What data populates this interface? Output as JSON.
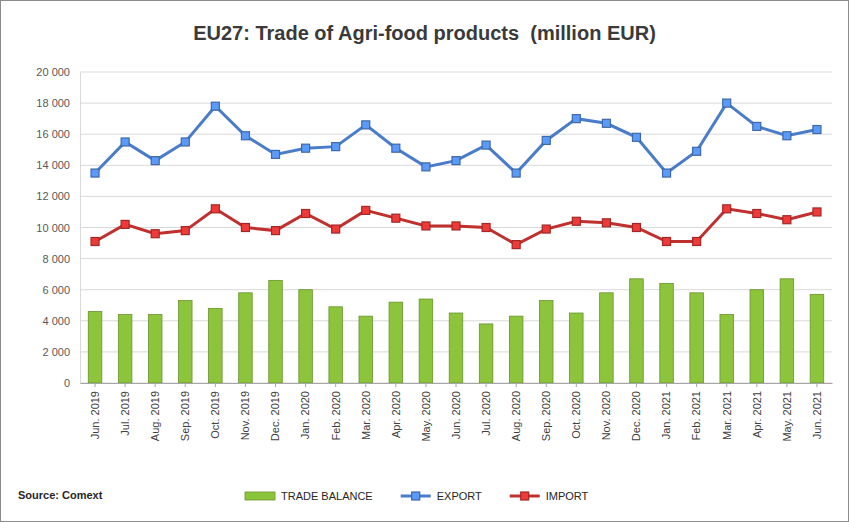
{
  "chart_data": {
    "type": "line",
    "title": "EU27: Trade of Agri-food products  (million EUR)",
    "source": "Source: Comext",
    "categories": [
      "Jun. 2019",
      "Jul. 2019",
      "Aug. 2019",
      "Sep. 2019",
      "Oct. 2019",
      "Nov. 2019",
      "Dec. 2019",
      "Jan. 2020",
      "Feb. 2020",
      "Mar. 2020",
      "Apr. 2020",
      "May. 2020",
      "Jun. 2020",
      "Jul. 2020",
      "Aug. 2020",
      "Sep. 2020",
      "Oct. 2020",
      "Nov. 2020",
      "Dec. 2020",
      "Jan. 2021",
      "Feb. 2021",
      "Mar. 2021",
      "Apr. 2021",
      "May. 2021",
      "Jun. 2021"
    ],
    "series": [
      {
        "name": "TRADE BALANCE",
        "type": "bar",
        "color": "#8cc43c",
        "values": [
          4600,
          4400,
          4400,
          5300,
          4800,
          5800,
          6600,
          6000,
          4900,
          4300,
          5200,
          5400,
          4500,
          3800,
          4300,
          5300,
          4500,
          5800,
          6700,
          6400,
          5800,
          4400,
          6000,
          6700,
          5700
        ]
      },
      {
        "name": "EXPORT",
        "type": "line",
        "color": "#4a7cc9",
        "marker": "square",
        "values": [
          13500,
          15500,
          14300,
          15500,
          17800,
          15900,
          14700,
          15100,
          15200,
          16600,
          15100,
          13900,
          14300,
          15300,
          13500,
          15600,
          17000,
          16700,
          15800,
          13500,
          14900,
          18000,
          16500,
          15900,
          16300
        ]
      },
      {
        "name": "IMPORT",
        "type": "line",
        "color": "#c0302e",
        "marker": "square",
        "values": [
          9100,
          10200,
          9600,
          9800,
          11200,
          10000,
          9800,
          10900,
          9900,
          11100,
          10600,
          10100,
          10100,
          10000,
          8900,
          9900,
          10400,
          10300,
          10000,
          9100,
          9100,
          11200,
          10900,
          10500,
          11000
        ]
      }
    ],
    "ylim": [
      0,
      20000
    ],
    "yticks": [
      0,
      {
        "value": 2000,
        "label": "2 000"
      },
      {
        "value": 4000,
        "label": "4 000"
      },
      {
        "value": 6000,
        "label": "6 000"
      },
      {
        "value": 8000,
        "label": "8 000"
      },
      {
        "value": 10000,
        "label": "10 000"
      },
      {
        "value": 12000,
        "label": "12 000"
      },
      {
        "value": 14000,
        "label": "14 000"
      },
      {
        "value": 16000,
        "label": "16 000"
      },
      {
        "value": 18000,
        "label": "18 000"
      },
      {
        "value": 20000,
        "label": "20 000"
      }
    ],
    "grid": true,
    "legend": "bottom"
  }
}
